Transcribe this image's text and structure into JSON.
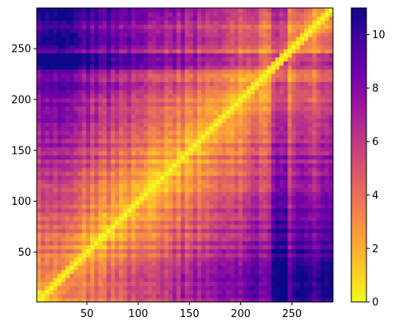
{
  "chart_data": {
    "type": "heatmap",
    "title": "",
    "xlabel": "",
    "ylabel": "",
    "xlim": [
      1,
      290
    ],
    "ylim": [
      1,
      290
    ],
    "x_ticks": [
      {
        "value": 50,
        "label": "50"
      },
      {
        "value": 100,
        "label": "100"
      },
      {
        "value": 150,
        "label": "150"
      },
      {
        "value": 200,
        "label": "200"
      },
      {
        "value": 250,
        "label": "250"
      }
    ],
    "y_ticks": [
      {
        "value": 50,
        "label": "50"
      },
      {
        "value": 100,
        "label": "100"
      },
      {
        "value": 150,
        "label": "150"
      },
      {
        "value": 200,
        "label": "200"
      },
      {
        "value": 250,
        "label": "250"
      }
    ],
    "colorbar": {
      "colormap": "plasma_r",
      "range": [
        0,
        11
      ],
      "ticks": [
        {
          "value": 0,
          "label": "0"
        },
        {
          "value": 2,
          "label": "2"
        },
        {
          "value": 4,
          "label": "4"
        },
        {
          "value": 6,
          "label": "6"
        },
        {
          "value": 8,
          "label": "8"
        },
        {
          "value": 10,
          "label": "10"
        }
      ],
      "colors": [
        "#f0f921",
        "#fdca26",
        "#fb9f3a",
        "#ed7953",
        "#d8576b",
        "#bd3786",
        "#9c179e",
        "#7201a8",
        "#46039f",
        "#0d0887"
      ]
    },
    "matrix_note_values": {
      "diagonal": 0,
      "typical": 5,
      "far_regions": 9.5
    }
  }
}
